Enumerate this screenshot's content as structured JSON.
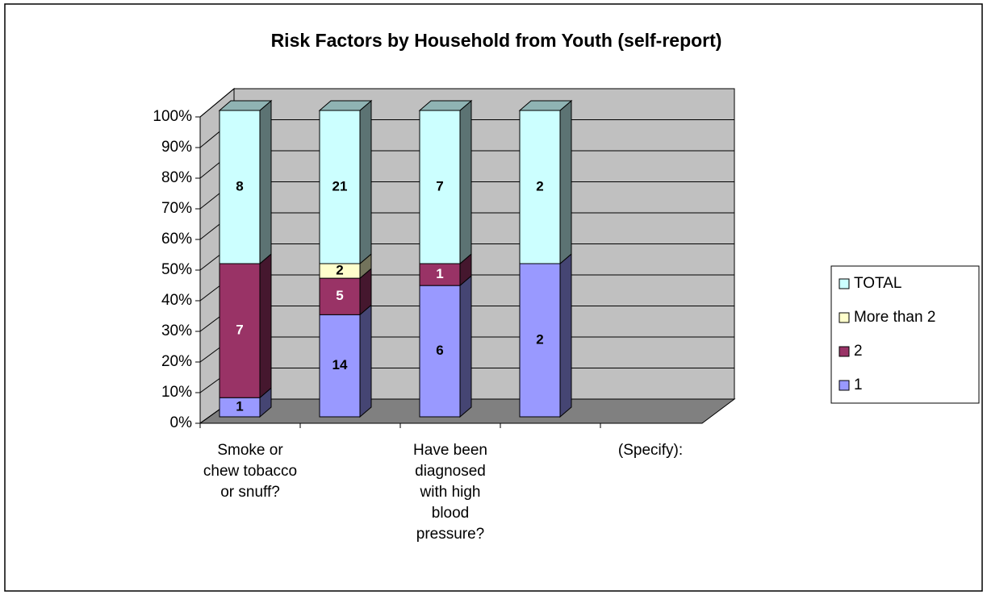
{
  "chart_data": {
    "type": "bar",
    "stacking": "percent",
    "title": "Risk Factors by Household from Youth (self-report)",
    "categories": [
      "Smoke or chew tobacco or snuff?",
      null,
      "Have been diagnosed with high blood pressure?",
      null,
      "(Specify):"
    ],
    "series": [
      {
        "name": "1",
        "color": "#9999ff",
        "label_color": "#000000",
        "values": [
          1,
          14,
          6,
          2,
          null
        ]
      },
      {
        "name": "2",
        "color": "#993366",
        "label_color": "#ffffff",
        "values": [
          7,
          5,
          1,
          null,
          null
        ]
      },
      {
        "name": "More than 2",
        "color": "#ffffcc",
        "label_color": "#000000",
        "values": [
          null,
          2,
          null,
          null,
          null
        ]
      },
      {
        "name": "TOTAL",
        "color": "#ccffff",
        "label_color": "#000000",
        "values": [
          8,
          21,
          7,
          2,
          null
        ]
      }
    ],
    "ylim": [
      0,
      100
    ],
    "yticks": [
      {
        "value": 0,
        "label": "0%"
      },
      {
        "value": 10,
        "label": "10%"
      },
      {
        "value": 20,
        "label": "20%"
      },
      {
        "value": 30,
        "label": "30%"
      },
      {
        "value": 40,
        "label": "40%"
      },
      {
        "value": 50,
        "label": "50%"
      },
      {
        "value": 60,
        "label": "60%"
      },
      {
        "value": 70,
        "label": "70%"
      },
      {
        "value": 80,
        "label": "80%"
      },
      {
        "value": 90,
        "label": "90%"
      },
      {
        "value": 100,
        "label": "100%"
      }
    ],
    "grid": true,
    "legend": "right"
  }
}
